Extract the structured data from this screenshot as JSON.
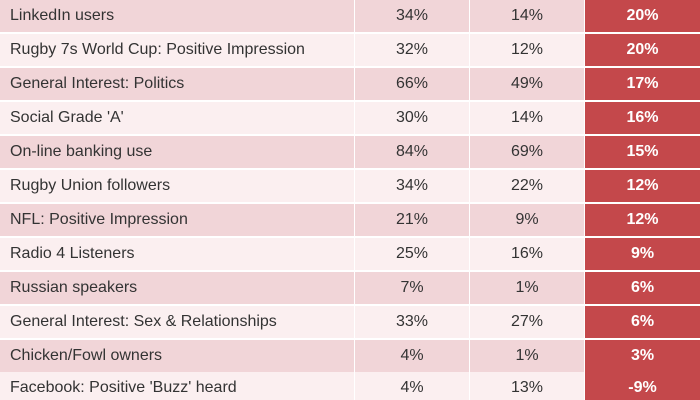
{
  "rows": [
    {
      "label": "LinkedIn users",
      "a": "34%",
      "b": "14%",
      "diff": "20%"
    },
    {
      "label": "Rugby 7s World Cup: Positive Impression",
      "a": "32%",
      "b": "12%",
      "diff": "20%"
    },
    {
      "label": "General Interest: Politics",
      "a": "66%",
      "b": "49%",
      "diff": "17%"
    },
    {
      "label": "Social Grade 'A'",
      "a": "30%",
      "b": "14%",
      "diff": "16%"
    },
    {
      "label": "On-line banking use",
      "a": "84%",
      "b": "69%",
      "diff": "15%"
    },
    {
      "label": "Rugby Union followers",
      "a": "34%",
      "b": "22%",
      "diff": "12%"
    },
    {
      "label": "NFL: Positive Impression",
      "a": "21%",
      "b": "9%",
      "diff": "12%"
    },
    {
      "label": "Radio 4 Listeners",
      "a": "25%",
      "b": "16%",
      "diff": "9%"
    },
    {
      "label": "Russian speakers",
      "a": "7%",
      "b": "1%",
      "diff": "6%"
    },
    {
      "label": "General Interest: Sex & Relationships",
      "a": "33%",
      "b": "27%",
      "diff": "6%"
    },
    {
      "label": "Chicken/Fowl owners",
      "a": "4%",
      "b": "1%",
      "diff": "3%"
    },
    {
      "label": "Facebook: Positive 'Buzz' heard",
      "a": "4%",
      "b": "13%",
      "diff": "-9%"
    }
  ],
  "colors": {
    "diff_background": "#c4484b",
    "row_odd": "#f1d5d8",
    "row_even": "#fbeff0"
  }
}
